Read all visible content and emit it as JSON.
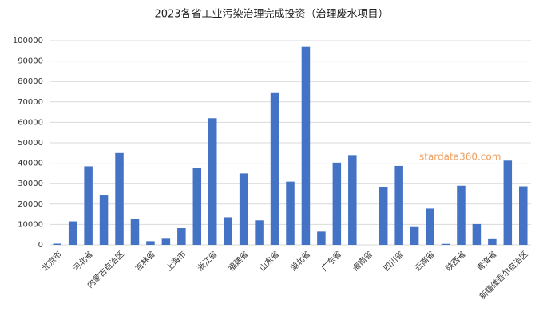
{
  "chart_data": {
    "type": "bar",
    "title": "2023各省工业污染治理完成投资（治理废水项目）",
    "categories": [
      "北京市",
      null,
      "河北省",
      null,
      "内蒙古自治区",
      null,
      "吉林省",
      null,
      "上海市",
      null,
      "浙江省",
      null,
      "福建省",
      null,
      "山东省",
      null,
      "湖北省",
      null,
      "广东省",
      null,
      "海南省",
      null,
      "四川省",
      null,
      "云南省",
      null,
      "陕西省",
      null,
      "青海省",
      null,
      "新疆维吾尔自治区"
    ],
    "values": [
      600,
      11500,
      38500,
      24200,
      45000,
      12700,
      1800,
      3000,
      8200,
      37500,
      62000,
      13500,
      35000,
      12000,
      74700,
      31000,
      97000,
      6500,
      40300,
      44000,
      0,
      28500,
      38700,
      8700,
      17800,
      500,
      29000,
      10200,
      2800,
      41300,
      28700
    ],
    "color": "#4472c4",
    "ylim": [
      0,
      100000
    ],
    "yticks": [
      0,
      10000,
      20000,
      30000,
      40000,
      50000,
      60000,
      70000,
      80000,
      90000,
      100000
    ],
    "grid": true,
    "watermark": "stardata360.com"
  }
}
